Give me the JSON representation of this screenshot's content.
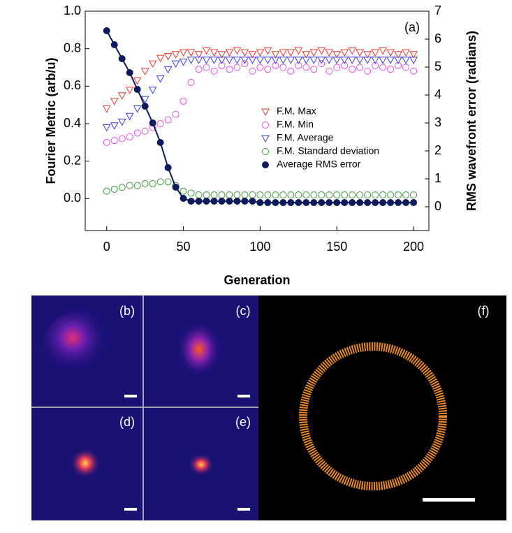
{
  "chart_data": {
    "type": "scatter",
    "annotation": "(a)",
    "xlabel": "Generation",
    "ylabel": "Fourier Metric (arb/u)",
    "y2label": "RMS wavefront error (radians)",
    "xlim": [
      -14,
      210
    ],
    "xticks": [
      0,
      50,
      100,
      150,
      200
    ],
    "ylim": [
      -0.17,
      1.0
    ],
    "yticks": [
      {
        "value": 0,
        "label": "0.0"
      },
      0.2,
      0.4,
      0.6,
      0.8,
      {
        "value": 1,
        "label": "1.0"
      }
    ],
    "y2lim": [
      -0.85,
      7
    ],
    "y2ticks": [
      0,
      1,
      2,
      3,
      4,
      5,
      6,
      7
    ],
    "x": [
      0,
      5,
      10,
      15,
      20,
      25,
      30,
      35,
      40,
      45,
      50,
      55,
      60,
      65,
      70,
      75,
      80,
      85,
      90,
      95,
      100,
      105,
      110,
      115,
      120,
      125,
      130,
      135,
      140,
      145,
      150,
      155,
      160,
      165,
      170,
      175,
      180,
      185,
      190,
      195,
      200
    ],
    "series": [
      {
        "name": "F.M. Max",
        "color": "#e8392c",
        "marker": "triangle-down",
        "values": [
          0.48,
          0.52,
          0.55,
          0.58,
          0.63,
          0.68,
          0.72,
          0.75,
          0.76,
          0.77,
          0.78,
          0.78,
          0.77,
          0.79,
          0.78,
          0.77,
          0.78,
          0.79,
          0.78,
          0.77,
          0.78,
          0.79,
          0.77,
          0.78,
          0.78,
          0.79,
          0.77,
          0.78,
          0.79,
          0.78,
          0.77,
          0.78,
          0.79,
          0.78,
          0.77,
          0.78,
          0.79,
          0.78,
          0.77,
          0.78,
          0.77
        ]
      },
      {
        "name": "F.M. Min",
        "color": "#e64ee6",
        "marker": "circle",
        "values": [
          0.3,
          0.31,
          0.32,
          0.33,
          0.35,
          0.36,
          0.38,
          0.4,
          0.42,
          0.45,
          0.52,
          0.62,
          0.69,
          0.7,
          0.68,
          0.71,
          0.69,
          0.7,
          0.72,
          0.68,
          0.7,
          0.69,
          0.71,
          0.7,
          0.68,
          0.71,
          0.7,
          0.69,
          0.72,
          0.68,
          0.7,
          0.71,
          0.69,
          0.7,
          0.68,
          0.71,
          0.7,
          0.69,
          0.71,
          0.7,
          0.68
        ]
      },
      {
        "name": "F.M. Average",
        "color": "#3a3ae0",
        "marker": "triangle-down",
        "values": [
          0.38,
          0.39,
          0.41,
          0.44,
          0.48,
          0.53,
          0.58,
          0.64,
          0.69,
          0.72,
          0.73,
          0.74,
          0.74,
          0.74,
          0.74,
          0.74,
          0.74,
          0.74,
          0.74,
          0.74,
          0.74,
          0.74,
          0.74,
          0.74,
          0.74,
          0.74,
          0.74,
          0.74,
          0.74,
          0.74,
          0.74,
          0.74,
          0.74,
          0.74,
          0.74,
          0.74,
          0.74,
          0.74,
          0.74,
          0.74,
          0.74
        ]
      },
      {
        "name": "F.M. Standard deviation",
        "color": "#3a9a3a",
        "marker": "circle",
        "values": [
          0.04,
          0.05,
          0.06,
          0.07,
          0.07,
          0.08,
          0.08,
          0.09,
          0.09,
          0.07,
          0.04,
          0.03,
          0.02,
          0.02,
          0.02,
          0.02,
          0.02,
          0.02,
          0.02,
          0.02,
          0.02,
          0.02,
          0.02,
          0.02,
          0.02,
          0.02,
          0.02,
          0.02,
          0.02,
          0.02,
          0.02,
          0.02,
          0.02,
          0.02,
          0.02,
          0.02,
          0.02,
          0.02,
          0.02,
          0.02,
          0.02
        ]
      },
      {
        "name": "Average RMS error",
        "color": "#0d1a5c",
        "marker": "filled-circle",
        "line": true,
        "axis": "y2",
        "values": [
          6.3,
          5.8,
          5.3,
          4.8,
          4.2,
          3.6,
          3.0,
          2.3,
          1.4,
          0.7,
          0.3,
          0.2,
          0.2,
          0.2,
          0.2,
          0.2,
          0.2,
          0.2,
          0.2,
          0.2,
          0.15,
          0.15,
          0.15,
          0.15,
          0.15,
          0.15,
          0.15,
          0.15,
          0.15,
          0.15,
          0.15,
          0.15,
          0.15,
          0.15,
          0.15,
          0.15,
          0.15,
          0.15,
          0.15,
          0.15,
          0.15
        ]
      }
    ]
  },
  "image_panels": {
    "labels": [
      "(b)",
      "(c)",
      "(d)",
      "(e)",
      "(f)"
    ]
  }
}
